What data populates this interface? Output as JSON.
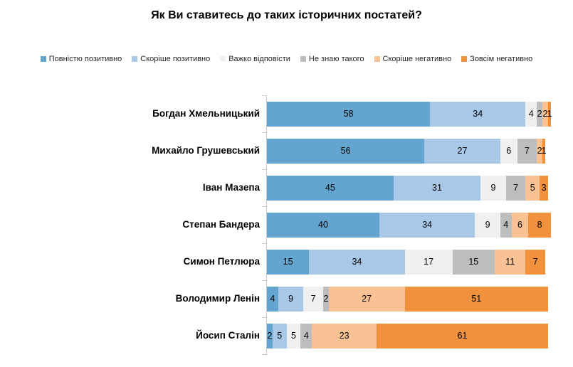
{
  "chart_data": {
    "type": "bar",
    "orientation": "horizontal",
    "stacked": true,
    "title": "Як Ви ставитесь до таких історичних постатей?",
    "legend_position": "top",
    "grid": false,
    "value_unit": "percent",
    "x_range": [
      0,
      100
    ],
    "categories": [
      "Богдан Хмельницький",
      "Михайло Грушевський",
      "Іван Мазепа",
      "Степан Бандера",
      "Симон Петлюра",
      "Володимир Ленін",
      "Йосип Сталін"
    ],
    "series": [
      {
        "name": "Повністю позитивно",
        "color": "#64A5CF",
        "values": [
          58,
          56,
          45,
          40,
          15,
          4,
          2
        ]
      },
      {
        "name": "Скоріше позитивно",
        "color": "#A9C7E6",
        "values": [
          34,
          27,
          31,
          34,
          34,
          9,
          5
        ]
      },
      {
        "name": "Важко відповісти",
        "color": "#F0F0F0",
        "values": [
          4,
          6,
          9,
          9,
          17,
          7,
          5
        ]
      },
      {
        "name": "Не знаю такого",
        "color": "#BDBDBD",
        "values": [
          2,
          7,
          7,
          4,
          15,
          2,
          4
        ]
      },
      {
        "name": "Скоріше негативно",
        "color": "#F8C295",
        "values": [
          2,
          2,
          5,
          6,
          11,
          27,
          23
        ]
      },
      {
        "name": "Зовсім негативно",
        "color": "#F2913D",
        "values": [
          1,
          1,
          3,
          8,
          7,
          51,
          61
        ]
      }
    ],
    "colors": {
      "axis": "#c9c9c9",
      "label_text": "#000000",
      "legend_text": "#262626"
    }
  }
}
